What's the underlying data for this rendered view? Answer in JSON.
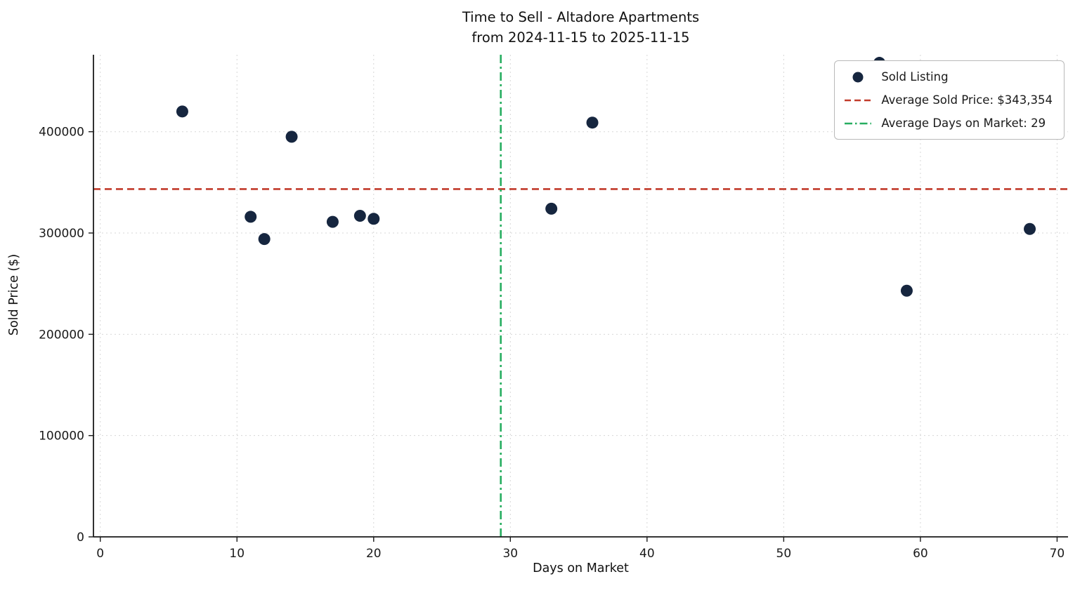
{
  "title_line1": "Time to Sell - Altadore Apartments",
  "title_line2": "from 2024-11-15 to 2025-11-15",
  "x_axis_label": "Days on Market",
  "y_axis_label": "Sold Price ($)",
  "legend": {
    "sold_listing_label": "Sold Listing",
    "avg_price_label": "Average Sold Price: $343,354",
    "avg_days_label": "Average Days on Market: 29"
  },
  "chart_data": {
    "type": "scatter",
    "title": "Time to Sell - Altadore Apartments from 2024-11-15 to 2025-11-15",
    "xlabel": "Days on Market",
    "ylabel": "Sold Price ($)",
    "xlim": [
      -0.5,
      70.8
    ],
    "ylim": [
      0,
      476000
    ],
    "xticks": [
      0,
      10,
      20,
      30,
      40,
      50,
      60,
      70
    ],
    "yticks": [
      0,
      100000,
      200000,
      300000,
      400000
    ],
    "grid": true,
    "legend_position": "upper right",
    "points": [
      {
        "days_on_market": 6,
        "sold_price": 420000
      },
      {
        "days_on_market": 11,
        "sold_price": 316000
      },
      {
        "days_on_market": 12,
        "sold_price": 294000
      },
      {
        "days_on_market": 14,
        "sold_price": 395000
      },
      {
        "days_on_market": 17,
        "sold_price": 311000
      },
      {
        "days_on_market": 19,
        "sold_price": 317000
      },
      {
        "days_on_market": 20,
        "sold_price": 314000
      },
      {
        "days_on_market": 33,
        "sold_price": 324000
      },
      {
        "days_on_market": 36,
        "sold_price": 409000
      },
      {
        "days_on_market": 57,
        "sold_price": 468000
      },
      {
        "days_on_market": 59,
        "sold_price": 243000
      },
      {
        "days_on_market": 68,
        "sold_price": 304000
      }
    ],
    "average_sold_price": 343354,
    "average_days_on_market": 29,
    "average_days_line_x": 29.3,
    "colors": {
      "point": "#16263f",
      "avg_price_line": "#c23b2b",
      "avg_days_line": "#27ae60",
      "grid": "#d7d7d7",
      "spine": "#1a1a1a"
    }
  }
}
